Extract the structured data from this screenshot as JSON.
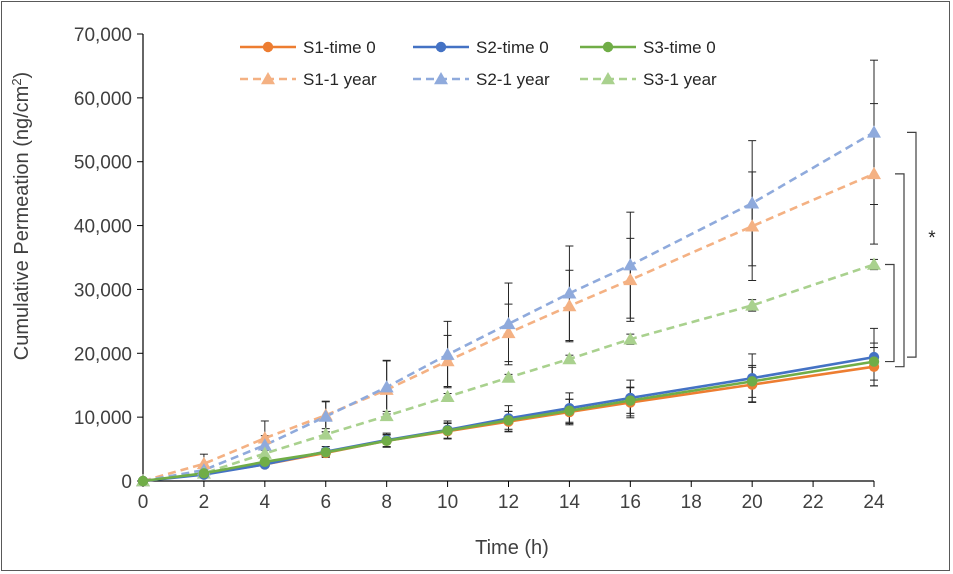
{
  "chart_data": {
    "type": "line",
    "xlabel": "Time (h)",
    "ylabel_main": "Cumulative Permeation (ng/cm",
    "ylabel_sup": "2",
    "ylabel_end": ")",
    "xlim": [
      0,
      24
    ],
    "ylim": [
      0,
      70000
    ],
    "x_ticks": [
      0,
      2,
      4,
      6,
      8,
      10,
      12,
      14,
      16,
      18,
      20,
      22,
      24
    ],
    "x_tick_labels": [
      "0",
      "2",
      "4",
      "6",
      "8",
      "10",
      "12",
      "14",
      "16",
      "18",
      "20",
      "22",
      "24"
    ],
    "y_ticks": [
      0,
      10000,
      20000,
      30000,
      40000,
      50000,
      60000,
      70000
    ],
    "y_tick_labels": [
      "0",
      "10,000",
      "20,000",
      "30,000",
      "40,000",
      "50,000",
      "60,000",
      "70,000"
    ],
    "grid": false,
    "legend_position": "top-center",
    "x": [
      0,
      2,
      4,
      6,
      8,
      10,
      12,
      14,
      16,
      20,
      24
    ],
    "series": [
      {
        "name": "S1-time 0",
        "color": "#ED7D31",
        "style": "solid",
        "marker": "circle",
        "values": [
          0,
          1100,
          2600,
          4400,
          6300,
          7800,
          9300,
          10800,
          12300,
          15100,
          17900
        ],
        "errors": [
          0,
          300,
          400,
          700,
          1000,
          1200,
          1600,
          2000,
          2400,
          2700,
          3000
        ]
      },
      {
        "name": "S2-time 0",
        "color": "#4472C4",
        "style": "solid",
        "marker": "circle",
        "values": [
          0,
          1000,
          2600,
          4600,
          6400,
          8000,
          9800,
          11400,
          13000,
          16100,
          19400
        ],
        "errors": [
          0,
          300,
          400,
          800,
          1100,
          1400,
          2000,
          2400,
          2800,
          3800,
          4500
        ]
      },
      {
        "name": "S3-time 0",
        "color": "#70AD47",
        "style": "solid",
        "marker": "circle",
        "values": [
          0,
          1200,
          3000,
          4500,
          6300,
          7900,
          9500,
          11000,
          12600,
          15600,
          18700
        ],
        "errors": [
          0,
          300,
          400,
          600,
          900,
          1200,
          1400,
          1800,
          2000,
          2500,
          2900
        ]
      },
      {
        "name": "S1-1 year",
        "color": "#F4B183",
        "style": "dashed",
        "marker": "triangle",
        "values": [
          0,
          2700,
          6700,
          10300,
          14300,
          18800,
          23200,
          27400,
          31500,
          39900,
          48100
        ],
        "errors": [
          0,
          1500,
          2700,
          2100,
          4500,
          4000,
          4500,
          5600,
          6500,
          8500,
          11000
        ]
      },
      {
        "name": "S2-1 year",
        "color": "#8FAADC",
        "style": "dashed",
        "marker": "triangle",
        "values": [
          0,
          1700,
          5600,
          10100,
          14700,
          19800,
          24600,
          29400,
          33800,
          43500,
          54600
        ],
        "errors": [
          0,
          800,
          1500,
          2400,
          4200,
          5200,
          6400,
          7400,
          8300,
          9800,
          11300
        ]
      },
      {
        "name": "S3-1 year",
        "color": "#A9D18E",
        "style": "dashed",
        "marker": "triangle",
        "values": [
          0,
          1200,
          4300,
          7300,
          10200,
          13200,
          16200,
          19100,
          22200,
          27500,
          33900
        ],
        "errors": [
          0,
          300,
          500,
          400,
          700,
          500,
          500,
          600,
          800,
          900,
          800
        ]
      }
    ],
    "annotations": [
      {
        "text": "*"
      }
    ]
  }
}
